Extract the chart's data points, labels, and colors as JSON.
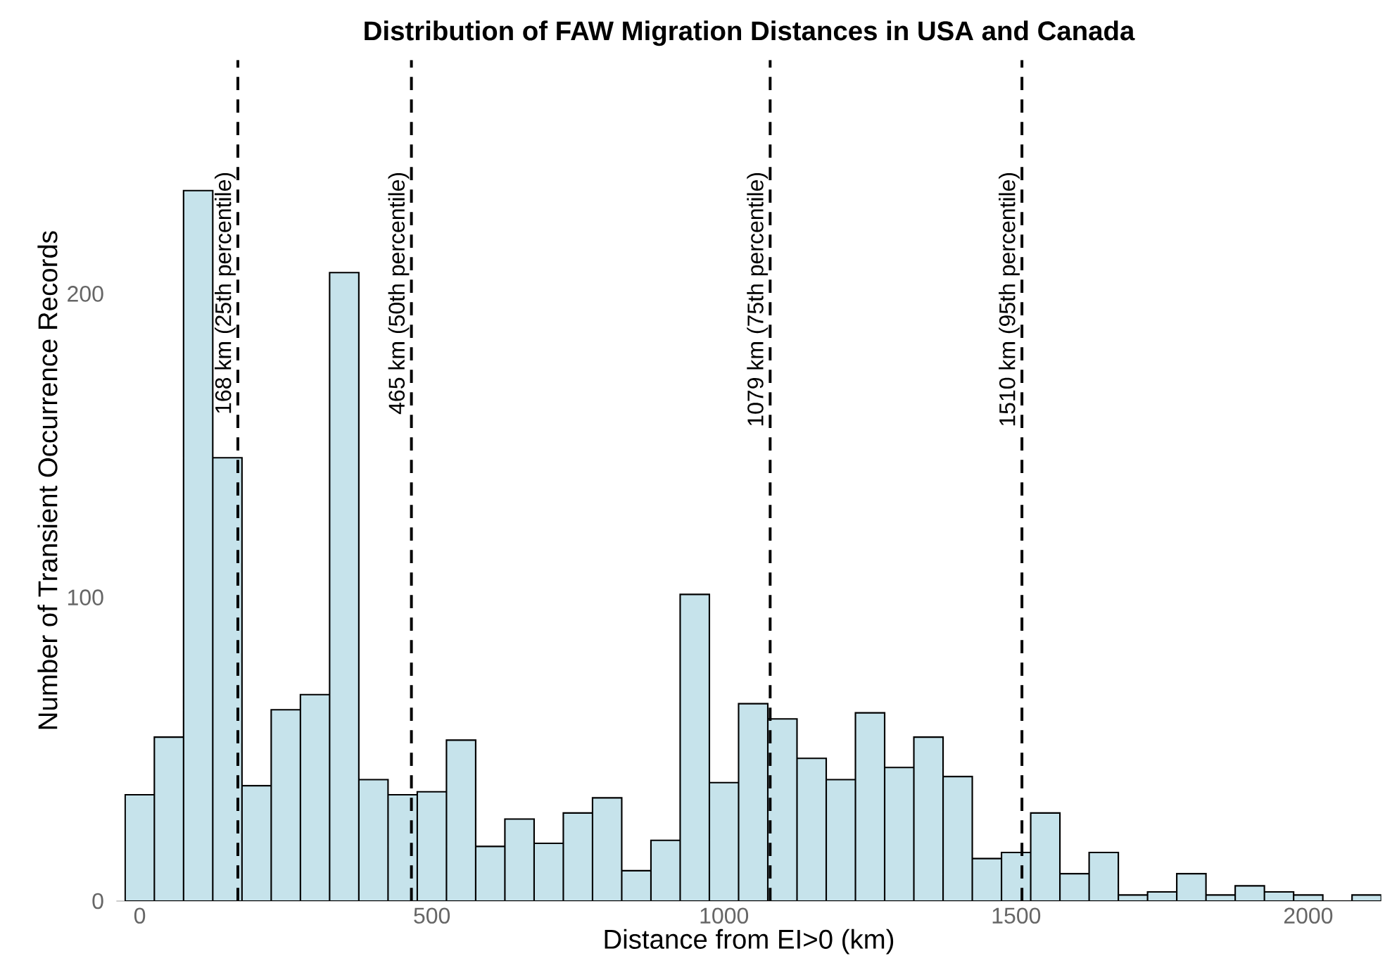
{
  "chart_data": {
    "type": "histogram",
    "title": "Distribution of FAW Migration Distances in USA and Canada",
    "xlabel": "Distance from EI>0 (km)",
    "ylabel": "Number of Transient Occurrence Records",
    "bins": [
      -25,
      25,
      75,
      125,
      175,
      225,
      275,
      325,
      375,
      425,
      475,
      525,
      575,
      625,
      675,
      725,
      775,
      825,
      875,
      925,
      975,
      1025,
      1075,
      1125,
      1175,
      1225,
      1275,
      1325,
      1375,
      1425,
      1475,
      1525,
      1575,
      1625,
      1675,
      1725,
      1775,
      1825,
      1875,
      1925,
      1975,
      2025,
      2075,
      2125
    ],
    "values": [
      35,
      54,
      234,
      146,
      38,
      63,
      68,
      207,
      40,
      35,
      36,
      53,
      18,
      27,
      19,
      29,
      34,
      10,
      20,
      101,
      39,
      65,
      60,
      47,
      40,
      62,
      44,
      54,
      41,
      14,
      16,
      29,
      9,
      16,
      2,
      3,
      9,
      2,
      5,
      3,
      2,
      0,
      2
    ],
    "color": "#c6e3eb",
    "xlim": [
      -40,
      2125
    ],
    "ylim": [
      0,
      277
    ],
    "xticks": [
      0,
      500,
      1000,
      1500,
      2000
    ],
    "yticks": [
      0,
      100,
      200
    ],
    "ref_lines": [
      {
        "axis": "x",
        "value": 168,
        "label": "168 km (25th percentile)",
        "color": "#000000",
        "line_style": "dashed"
      },
      {
        "axis": "x",
        "value": 465,
        "label": "465 km (50th percentile)",
        "color": "#000000",
        "line_style": "dashed"
      },
      {
        "axis": "x",
        "value": 1079,
        "label": "1079 km (75th percentile)",
        "color": "#000000",
        "line_style": "dashed"
      },
      {
        "axis": "x",
        "value": 1510,
        "label": "1510 km (95th percentile)",
        "color": "#000000",
        "line_style": "dashed"
      }
    ]
  }
}
